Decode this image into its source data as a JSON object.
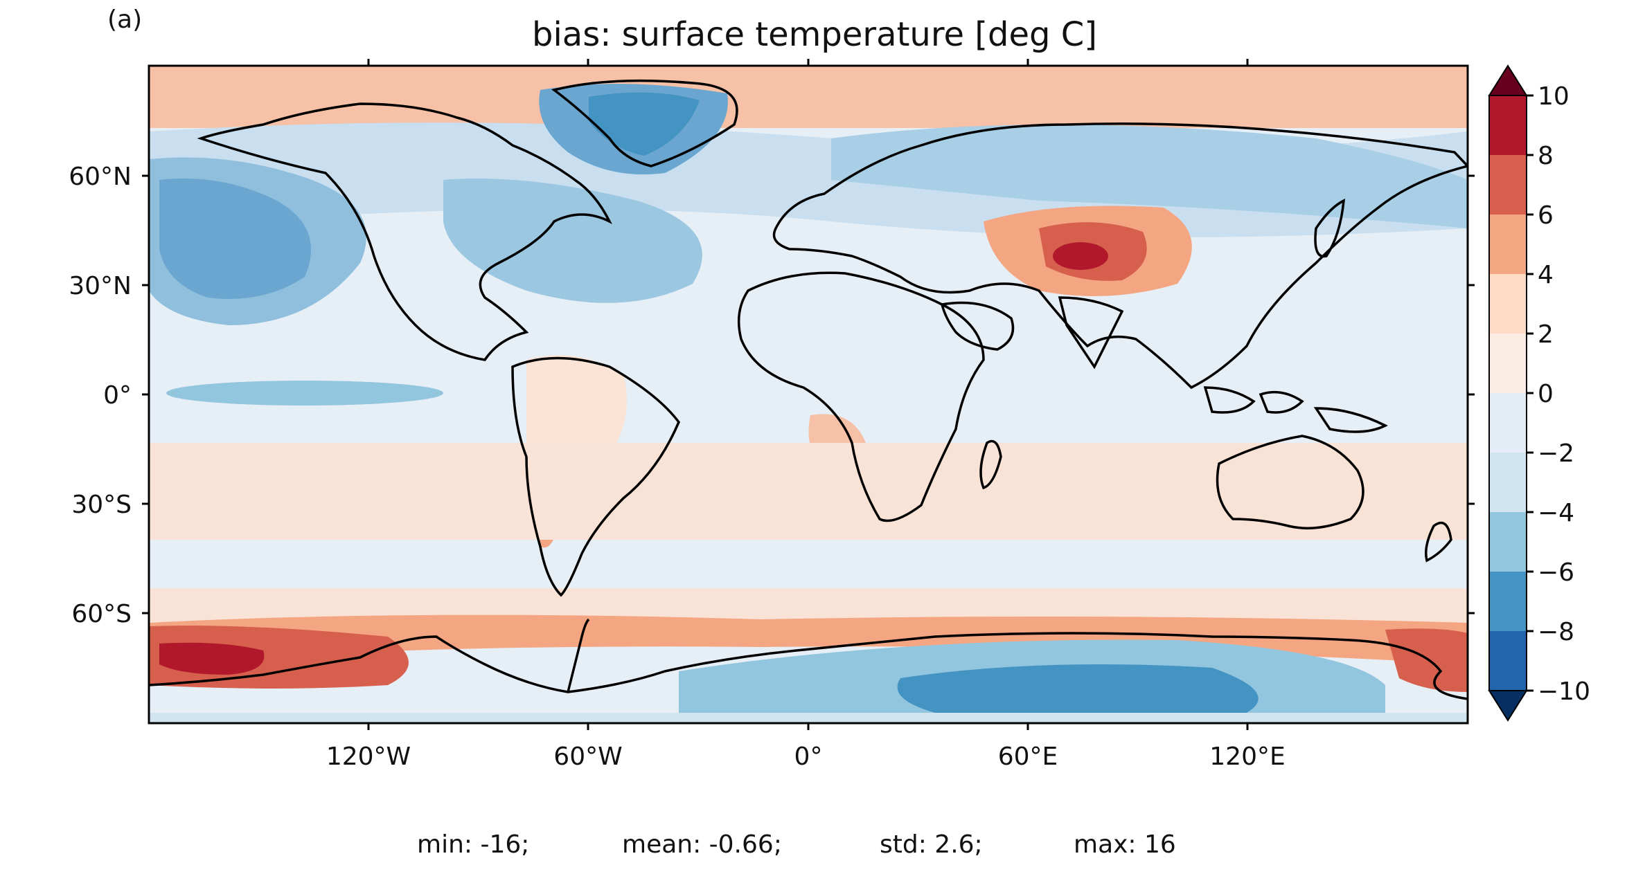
{
  "panel_label": "(a)",
  "title": "bias: surface temperature [deg C]",
  "map": {
    "projection": "PlateCarree",
    "lon_range": [
      -180,
      180
    ],
    "lat_range": [
      -90,
      90
    ],
    "y_ticks": [
      "60°N",
      "30°N",
      "0°",
      "30°S",
      "60°S"
    ],
    "x_ticks": [
      "120°W",
      "60°W",
      "0°",
      "60°E",
      "120°E"
    ],
    "coastlines": true,
    "field_description": "warm bias (red) over Antarctic coast, Southern Ocean, Tibetan plateau, Andes; cold bias (blue) over Greenland, N Pacific, N Atlantic, Antarctic interior"
  },
  "colorbar": {
    "levels": [
      -10,
      -8,
      -6,
      -4,
      -2,
      0,
      2,
      4,
      6,
      8,
      10
    ],
    "labels": [
      "10",
      "8",
      "6",
      "4",
      "2",
      "0",
      "−2",
      "−4",
      "−6",
      "−8",
      "−10"
    ],
    "colors": [
      "#67001f",
      "#b2182b",
      "#d6604d",
      "#f4a582",
      "#fddbc7",
      "#fbece4",
      "#e4edf5",
      "#d1e5f0",
      "#92c5de",
      "#4393c3",
      "#2166ac",
      "#053061"
    ],
    "extend": "both",
    "cmap": "RdBu_r"
  },
  "stats": {
    "min": "min: -16;",
    "mean": "mean: -0.66;",
    "std": "std: 2.6;",
    "max": "max: 16"
  }
}
